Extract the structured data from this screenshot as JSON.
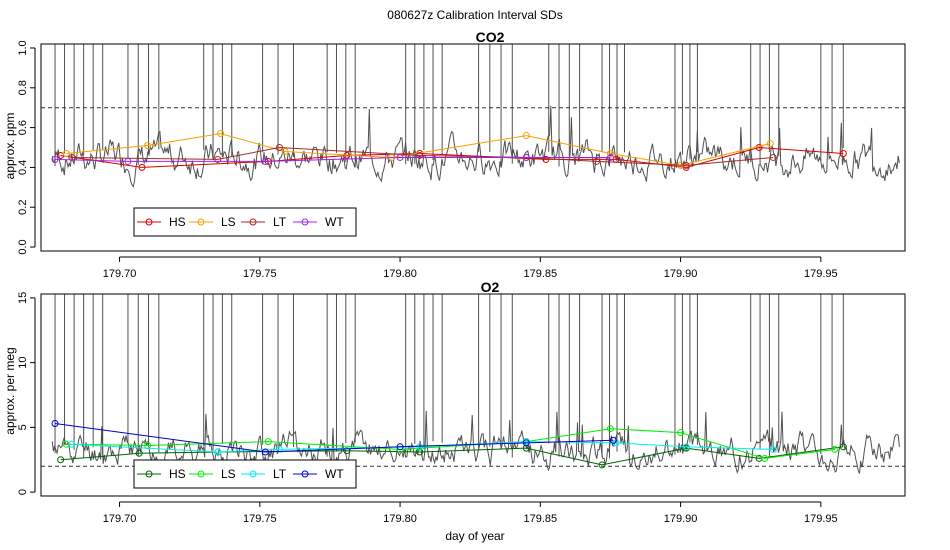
{
  "title": "080627z   Calibration Interval SDs",
  "xlabel": "day of year",
  "colors": {
    "HS_co2": "#dd0000",
    "LS_co2": "#f5a000",
    "LT_co2": "#a52a2a",
    "WT_co2": "#a020f0",
    "HS_o2": "#006400",
    "LS_o2": "#00ee00",
    "LT_o2": "#00eeee",
    "WT_o2": "#0000cd",
    "trace": "#505050",
    "threshold": "#333333"
  },
  "chart_data": [
    {
      "type": "line",
      "title": "CO2",
      "ylabel": "approx. ppm",
      "xlim": [
        179.672,
        179.98
      ],
      "ylim": [
        -0.02,
        1.02
      ],
      "xticks": [
        "179.70",
        "179.75",
        "179.80",
        "179.85",
        "179.90",
        "179.95"
      ],
      "xtick_values": [
        179.7,
        179.75,
        179.8,
        179.85,
        179.9,
        179.95
      ],
      "yticks": [
        "0.0",
        "0.2",
        "0.4",
        "0.6",
        "0.8",
        "1.0"
      ],
      "ytick_values": [
        0.0,
        0.2,
        0.4,
        0.6,
        0.8,
        1.0
      ],
      "threshold": 0.7,
      "trace": {
        "seed": 7,
        "base": 0.45,
        "noise": 0.05,
        "clip": 1.05,
        "spike_groups": [
          [
            179.677,
            179.694,
            6
          ],
          [
            179.703,
            179.714,
            4
          ],
          [
            179.73,
            179.74,
            4
          ],
          [
            179.751,
            179.762,
            3
          ],
          [
            179.774,
            179.784,
            4
          ],
          [
            179.802,
            179.815,
            5
          ],
          [
            179.828,
            179.84,
            4
          ],
          [
            179.853,
            179.864,
            4
          ],
          [
            179.872,
            179.88,
            4
          ],
          [
            179.898,
            179.906,
            4
          ],
          [
            179.925,
            179.935,
            4
          ],
          [
            179.95,
            179.958,
            3
          ]
        ]
      },
      "legend": [
        "HS",
        "LS",
        "LT",
        "WT"
      ],
      "series": [
        {
          "name": "HS",
          "x": [
            179.679,
            179.708,
            179.753,
            179.781,
            179.807,
            179.852,
            179.877,
            179.902,
            179.928,
            179.958
          ],
          "y": [
            0.46,
            0.4,
            0.43,
            0.46,
            0.47,
            0.44,
            0.44,
            0.4,
            0.5,
            0.47
          ]
        },
        {
          "name": "LS",
          "x": [
            179.681,
            179.71,
            179.736,
            179.759,
            179.797,
            179.845,
            179.875,
            179.9,
            179.932
          ],
          "y": [
            0.47,
            0.51,
            0.57,
            0.48,
            0.45,
            0.56,
            0.47,
            0.41,
            0.52
          ]
        },
        {
          "name": "LT",
          "x": [
            179.683,
            179.735,
            179.757,
            179.807,
            179.845,
            179.87,
            179.902,
            179.933
          ],
          "y": [
            0.45,
            0.44,
            0.5,
            0.46,
            0.45,
            0.43,
            0.41,
            0.45
          ]
        },
        {
          "name": "WT",
          "x": [
            179.677,
            179.703,
            179.752,
            179.8,
            179.845,
            179.875
          ],
          "y": [
            0.44,
            0.43,
            0.43,
            0.45,
            0.45,
            0.45
          ]
        }
      ]
    },
    {
      "type": "line",
      "title": "O2",
      "ylabel": "approx. per meg",
      "xlim": [
        179.672,
        179.98
      ],
      "ylim": [
        -0.3,
        15.3
      ],
      "xticks": [
        "179.70",
        "179.75",
        "179.80",
        "179.85",
        "179.90",
        "179.95"
      ],
      "xtick_values": [
        179.7,
        179.75,
        179.8,
        179.85,
        179.9,
        179.95
      ],
      "yticks": [
        "0",
        "5",
        "10",
        "15"
      ],
      "ytick_values": [
        0,
        5,
        10,
        15
      ],
      "threshold": 2.0,
      "trace": {
        "seed": 11,
        "base": 3.3,
        "noise": 0.7,
        "clip": 15.6,
        "spike_groups": [
          [
            179.677,
            179.694,
            6
          ],
          [
            179.703,
            179.714,
            4
          ],
          [
            179.73,
            179.74,
            4
          ],
          [
            179.751,
            179.762,
            3
          ],
          [
            179.774,
            179.784,
            4
          ],
          [
            179.802,
            179.815,
            5
          ],
          [
            179.828,
            179.84,
            4
          ],
          [
            179.853,
            179.864,
            4
          ],
          [
            179.872,
            179.88,
            4
          ],
          [
            179.898,
            179.906,
            4
          ],
          [
            179.925,
            179.935,
            4
          ],
          [
            179.95,
            179.958,
            3
          ]
        ]
      },
      "legend": [
        "HS",
        "LS",
        "LT",
        "WT"
      ],
      "series": [
        {
          "name": "HS",
          "x": [
            179.679,
            179.707,
            179.735,
            179.781,
            179.807,
            179.845,
            179.872,
            179.902,
            179.928,
            179.958
          ],
          "y": [
            2.5,
            3.0,
            3.1,
            3.2,
            3.1,
            3.4,
            2.1,
            3.4,
            2.6,
            3.5
          ]
        },
        {
          "name": "LS",
          "x": [
            179.681,
            179.71,
            179.753,
            179.8,
            179.845,
            179.875,
            179.9,
            179.93,
            179.955
          ],
          "y": [
            3.7,
            3.6,
            3.9,
            3.3,
            3.9,
            4.9,
            4.6,
            2.6,
            3.3
          ]
        },
        {
          "name": "LT",
          "x": [
            179.683,
            179.735,
            179.757,
            179.807,
            179.845,
            179.877,
            179.902,
            179.933
          ],
          "y": [
            3.7,
            3.1,
            3.3,
            3.5,
            3.9,
            3.8,
            3.5,
            3.3
          ]
        },
        {
          "name": "WT",
          "x": [
            179.677,
            179.752,
            179.8,
            179.845,
            179.876
          ],
          "y": [
            5.3,
            3.1,
            3.5,
            3.8,
            4.0
          ]
        }
      ]
    }
  ]
}
